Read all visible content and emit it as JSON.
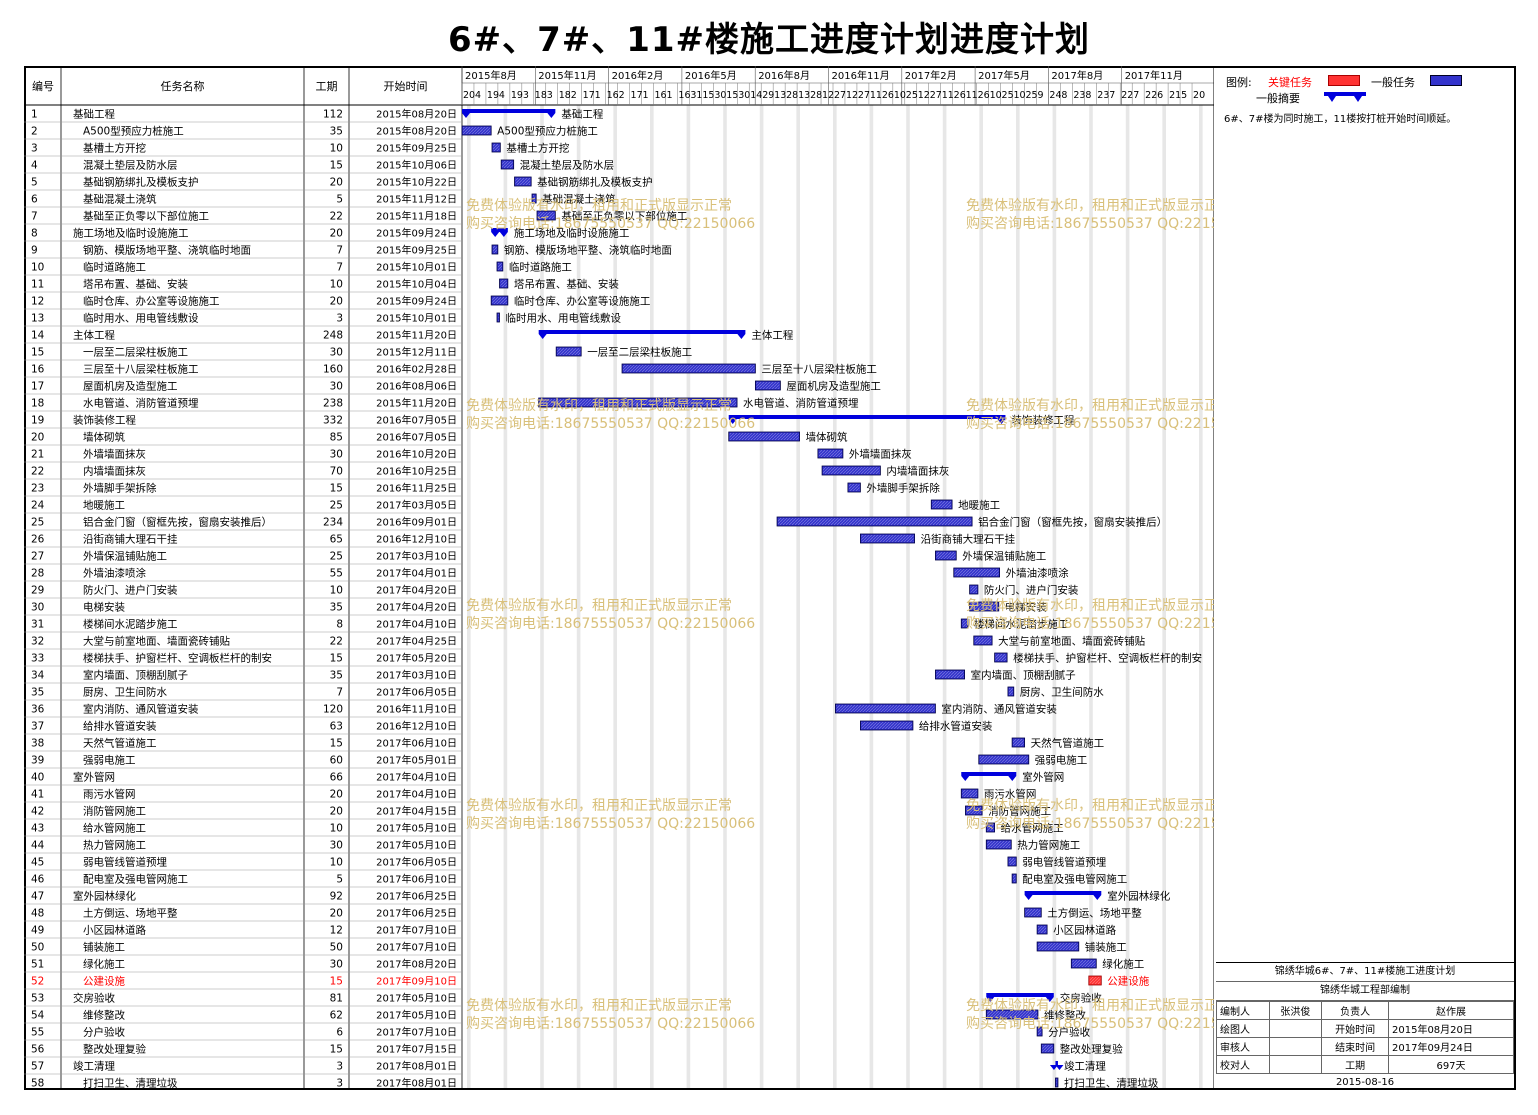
{
  "title": "6#、7#、11#楼施工进度计划进度计划",
  "headers": {
    "no": "编号",
    "name": "任务名称",
    "dur": "工期",
    "start": "开始时间"
  },
  "timeline_years": [
    "2015年8月",
    "2015年11月",
    "2016年2月",
    "2016年5月",
    "2016年8月",
    "2016年11月",
    "2017年2月",
    "2017年5月",
    "2017年8月",
    "2017年11月"
  ],
  "timeline_days": [
    "20",
    "4",
    "19",
    "4",
    "19",
    "3",
    "18",
    "3",
    "18",
    "2",
    "17",
    "1",
    "16",
    "2",
    "17",
    "1",
    "16",
    "1",
    "16",
    "31",
    "15",
    "30",
    "15",
    "30",
    "14",
    "29",
    "13",
    "28",
    "13",
    "28",
    "12",
    "27",
    "12",
    "27",
    "11",
    "26",
    "10",
    "25",
    "12",
    "27",
    "11",
    "26",
    "11",
    "26",
    "10",
    "25",
    "10",
    "25",
    "9",
    "24",
    "8",
    "23",
    "8",
    "23",
    "7",
    "22",
    "7",
    "22",
    "6",
    "21",
    "5",
    "20"
  ],
  "legend": {
    "label": "图例:",
    "critical": "关键任务",
    "normal": "一般任务",
    "summary": "一般摘要"
  },
  "note": "6#、7#楼为同时施工，11楼按打桩开始时间顺延。",
  "signoff": {
    "project": "锦绣华城6#、7#、11#楼施工进度计划",
    "dept": "锦绣华城工程部编制",
    "rows": [
      [
        "编制人",
        "张洪俊",
        "负责人",
        "赵作展"
      ],
      [
        "绘图人",
        "",
        "开始时间",
        "2015年08月20日"
      ],
      [
        "审核人",
        "",
        "结束时间",
        "2017年09月24日"
      ],
      [
        "校对人",
        "",
        "工期",
        "697天"
      ]
    ],
    "date": "2015-08-16"
  },
  "watermark": [
    "免费体验版有水印，租用和正式版显示正常",
    "购买咨询电话:18675550537 QQ:22150066"
  ],
  "colors": {
    "bar": "#3333cc",
    "summary": "#0000dd",
    "critical": "#ff0000",
    "critical_fill": "#ff3333",
    "watermark": "#d9c07a"
  },
  "chart_data": {
    "type": "gantt",
    "x_range": [
      "2015-08-20",
      "2017-12-31"
    ],
    "tasks": [
      {
        "id": "1",
        "name": "基础工程",
        "dur": 112,
        "start": "2015年08月20日",
        "level": 0,
        "summary": true,
        "critical": false
      },
      {
        "id": "2",
        "name": "A500型预应力桩施工",
        "dur": 35,
        "start": "2015年08月20日",
        "level": 1,
        "summary": false,
        "critical": false
      },
      {
        "id": "3",
        "name": "基槽土方开挖",
        "dur": 10,
        "start": "2015年09月25日",
        "level": 1,
        "summary": false,
        "critical": false
      },
      {
        "id": "4",
        "name": "混凝土垫层及防水层",
        "dur": 15,
        "start": "2015年10月06日",
        "level": 1,
        "summary": false,
        "critical": false
      },
      {
        "id": "5",
        "name": "基础钢筋绑扎及模板支护",
        "dur": 20,
        "start": "2015年10月22日",
        "level": 1,
        "summary": false,
        "critical": false
      },
      {
        "id": "6",
        "name": "基础混凝土浇筑",
        "dur": 5,
        "start": "2015年11月12日",
        "level": 1,
        "summary": false,
        "critical": false
      },
      {
        "id": "7",
        "name": "基础至正负零以下部位施工",
        "dur": 22,
        "start": "2015年11月18日",
        "level": 1,
        "summary": false,
        "critical": false
      },
      {
        "id": "8",
        "name": "施工场地及临时设施施工",
        "dur": 20,
        "start": "2015年09月24日",
        "level": 0,
        "summary": true,
        "critical": false
      },
      {
        "id": "9",
        "name": "钢筋、模版场地平整、浇筑临时地面",
        "dur": 7,
        "start": "2015年09月25日",
        "level": 1,
        "summary": false,
        "critical": false
      },
      {
        "id": "10",
        "name": "临时道路施工",
        "dur": 7,
        "start": "2015年10月01日",
        "level": 1,
        "summary": false,
        "critical": false
      },
      {
        "id": "11",
        "name": "塔吊布置、基础、安装",
        "dur": 10,
        "start": "2015年10月04日",
        "level": 1,
        "summary": false,
        "critical": false
      },
      {
        "id": "12",
        "name": "临时仓库、办公室等设施施工",
        "dur": 20,
        "start": "2015年09月24日",
        "level": 1,
        "summary": false,
        "critical": false
      },
      {
        "id": "13",
        "name": "临时用水、用电管线敷设",
        "dur": 3,
        "start": "2015年10月01日",
        "level": 1,
        "summary": false,
        "critical": false
      },
      {
        "id": "14",
        "name": "主体工程",
        "dur": 248,
        "start": "2015年11月20日",
        "level": 0,
        "summary": true,
        "critical": false
      },
      {
        "id": "15",
        "name": "一层至二层梁柱板施工",
        "dur": 30,
        "start": "2015年12月11日",
        "level": 1,
        "summary": false,
        "critical": false
      },
      {
        "id": "16",
        "name": "三层至十八层梁柱板施工",
        "dur": 160,
        "start": "2016年02月28日",
        "level": 1,
        "summary": false,
        "critical": false
      },
      {
        "id": "17",
        "name": "屋面机房及造型施工",
        "dur": 30,
        "start": "2016年08月06日",
        "level": 1,
        "summary": false,
        "critical": false
      },
      {
        "id": "18",
        "name": "水电管道、消防管道预埋",
        "dur": 238,
        "start": "2015年11月20日",
        "level": 1,
        "summary": false,
        "critical": false
      },
      {
        "id": "19",
        "name": "装饰装修工程",
        "dur": 332,
        "start": "2016年07月05日",
        "level": 0,
        "summary": true,
        "critical": false
      },
      {
        "id": "20",
        "name": "墙体砌筑",
        "dur": 85,
        "start": "2016年07月05日",
        "level": 1,
        "summary": false,
        "critical": false
      },
      {
        "id": "21",
        "name": "外墙墙面抹灰",
        "dur": 30,
        "start": "2016年10月20日",
        "level": 1,
        "summary": false,
        "critical": false
      },
      {
        "id": "22",
        "name": "内墙墙面抹灰",
        "dur": 70,
        "start": "2016年10月25日",
        "level": 1,
        "summary": false,
        "critical": false
      },
      {
        "id": "23",
        "name": "外墙脚手架拆除",
        "dur": 15,
        "start": "2016年11月25日",
        "level": 1,
        "summary": false,
        "critical": false
      },
      {
        "id": "24",
        "name": "地暖施工",
        "dur": 25,
        "start": "2017年03月05日",
        "level": 1,
        "summary": false,
        "critical": false
      },
      {
        "id": "25",
        "name": "铝合金门窗（窗框先按，窗扇安装推后）",
        "dur": 234,
        "start": "2016年09月01日",
        "level": 1,
        "summary": false,
        "critical": false
      },
      {
        "id": "26",
        "name": "沿街商铺大理石干挂",
        "dur": 65,
        "start": "2016年12月10日",
        "level": 1,
        "summary": false,
        "critical": false
      },
      {
        "id": "27",
        "name": "外墙保温铺贴施工",
        "dur": 25,
        "start": "2017年03月10日",
        "level": 1,
        "summary": false,
        "critical": false
      },
      {
        "id": "28",
        "name": "外墙油漆喷涂",
        "dur": 55,
        "start": "2017年04月01日",
        "level": 1,
        "summary": false,
        "critical": false
      },
      {
        "id": "29",
        "name": "防火门、进户门安装",
        "dur": 10,
        "start": "2017年04月20日",
        "level": 1,
        "summary": false,
        "critical": false
      },
      {
        "id": "30",
        "name": "电梯安装",
        "dur": 35,
        "start": "2017年04月20日",
        "level": 1,
        "summary": false,
        "critical": false
      },
      {
        "id": "31",
        "name": "楼梯间水泥踏步施工",
        "dur": 8,
        "start": "2017年04月10日",
        "level": 1,
        "summary": false,
        "critical": false
      },
      {
        "id": "32",
        "name": "大堂与前室地面、墙面瓷砖铺贴",
        "dur": 22,
        "start": "2017年04月25日",
        "level": 1,
        "summary": false,
        "critical": false
      },
      {
        "id": "33",
        "name": "楼梯扶手、护窗栏杆、空调板栏杆的制安",
        "dur": 15,
        "start": "2017年05月20日",
        "level": 1,
        "summary": false,
        "critical": false
      },
      {
        "id": "34",
        "name": "室内墙面、顶棚刮腻子",
        "dur": 35,
        "start": "2017年03月10日",
        "level": 1,
        "summary": false,
        "critical": false
      },
      {
        "id": "35",
        "name": "厨房、卫生间防水",
        "dur": 7,
        "start": "2017年06月05日",
        "level": 1,
        "summary": false,
        "critical": false
      },
      {
        "id": "36",
        "name": "室内消防、通风管道安装",
        "dur": 120,
        "start": "2016年11月10日",
        "level": 1,
        "summary": false,
        "critical": false
      },
      {
        "id": "37",
        "name": "给排水管道安装",
        "dur": 63,
        "start": "2016年12月10日",
        "level": 1,
        "summary": false,
        "critical": false
      },
      {
        "id": "38",
        "name": "天然气管道施工",
        "dur": 15,
        "start": "2017年06月10日",
        "level": 1,
        "summary": false,
        "critical": false
      },
      {
        "id": "39",
        "name": "强弱电施工",
        "dur": 60,
        "start": "2017年05月01日",
        "level": 1,
        "summary": false,
        "critical": false
      },
      {
        "id": "40",
        "name": "室外管网",
        "dur": 66,
        "start": "2017年04月10日",
        "level": 0,
        "summary": true,
        "critical": false
      },
      {
        "id": "41",
        "name": "雨污水管网",
        "dur": 20,
        "start": "2017年04月10日",
        "level": 1,
        "summary": false,
        "critical": false
      },
      {
        "id": "42",
        "name": "消防管网施工",
        "dur": 20,
        "start": "2017年04月15日",
        "level": 1,
        "summary": false,
        "critical": false
      },
      {
        "id": "43",
        "name": "给水管网施工",
        "dur": 10,
        "start": "2017年05月10日",
        "level": 1,
        "summary": false,
        "critical": false
      },
      {
        "id": "44",
        "name": "热力管网施工",
        "dur": 30,
        "start": "2017年05月10日",
        "level": 1,
        "summary": false,
        "critical": false
      },
      {
        "id": "45",
        "name": "弱电管线管道预埋",
        "dur": 10,
        "start": "2017年06月05日",
        "level": 1,
        "summary": false,
        "critical": false
      },
      {
        "id": "46",
        "name": "配电室及强电管网施工",
        "dur": 5,
        "start": "2017年06月10日",
        "level": 1,
        "summary": false,
        "critical": false
      },
      {
        "id": "47",
        "name": "室外园林绿化",
        "dur": 92,
        "start": "2017年06月25日",
        "level": 0,
        "summary": true,
        "critical": false
      },
      {
        "id": "48",
        "name": "土方倒运、场地平整",
        "dur": 20,
        "start": "2017年06月25日",
        "level": 1,
        "summary": false,
        "critical": false
      },
      {
        "id": "49",
        "name": "小区园林道路",
        "dur": 12,
        "start": "2017年07月10日",
        "level": 1,
        "summary": false,
        "critical": false
      },
      {
        "id": "50",
        "name": "铺装施工",
        "dur": 50,
        "start": "2017年07月10日",
        "level": 1,
        "summary": false,
        "critical": false
      },
      {
        "id": "51",
        "name": "绿化施工",
        "dur": 30,
        "start": "2017年08月20日",
        "level": 1,
        "summary": false,
        "critical": false
      },
      {
        "id": "52",
        "name": "公建设施",
        "dur": 15,
        "start": "2017年09月10日",
        "level": 1,
        "summary": false,
        "critical": true
      },
      {
        "id": "53",
        "name": "交房验收",
        "dur": 81,
        "start": "2017年05月10日",
        "level": 0,
        "summary": true,
        "critical": false
      },
      {
        "id": "54",
        "name": "维修整改",
        "dur": 62,
        "start": "2017年05月10日",
        "level": 1,
        "summary": false,
        "critical": false
      },
      {
        "id": "55",
        "name": "分户验收",
        "dur": 6,
        "start": "2017年07月10日",
        "level": 1,
        "summary": false,
        "critical": false
      },
      {
        "id": "56",
        "name": "整改处理复验",
        "dur": 15,
        "start": "2017年07月15日",
        "level": 1,
        "summary": false,
        "critical": false
      },
      {
        "id": "57",
        "name": "竣工清理",
        "dur": 3,
        "start": "2017年08月01日",
        "level": 0,
        "summary": true,
        "critical": false
      },
      {
        "id": "58",
        "name": "打扫卫生、清理垃圾",
        "dur": 3,
        "start": "2017年08月01日",
        "level": 1,
        "summary": false,
        "critical": false
      }
    ]
  }
}
